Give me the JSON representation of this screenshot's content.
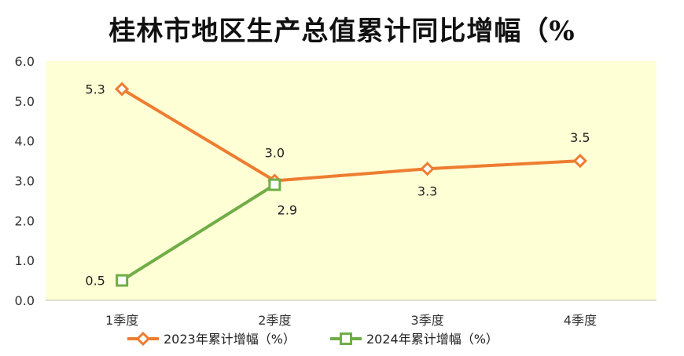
{
  "chart_data": {
    "type": "line",
    "title": "桂林市地区生产总值累计同比增幅（%",
    "categories": [
      "1季度",
      "2季度",
      "3季度",
      "4季度"
    ],
    "series": [
      {
        "name": "2023年累计增幅（%）",
        "values": [
          5.3,
          3.0,
          3.3,
          3.5
        ],
        "labels": [
          "5.3",
          "3.0",
          "3.3",
          "3.5"
        ],
        "color": "#ED7D31",
        "marker": "diamond"
      },
      {
        "name": "2024年累计增幅（%）",
        "values": [
          0.5,
          2.9,
          null,
          null
        ],
        "labels": [
          "0.5",
          "2.9"
        ],
        "color": "#70AD47",
        "marker": "square"
      }
    ],
    "ylim": [
      0,
      6
    ],
    "yticks": [
      "0.0",
      "1.0",
      "2.0",
      "3.0",
      "4.0",
      "5.0",
      "6.0"
    ],
    "xlabel": "",
    "ylabel": "",
    "plot_background": "#FFFFD5",
    "grid": false,
    "legend_position": "bottom"
  }
}
